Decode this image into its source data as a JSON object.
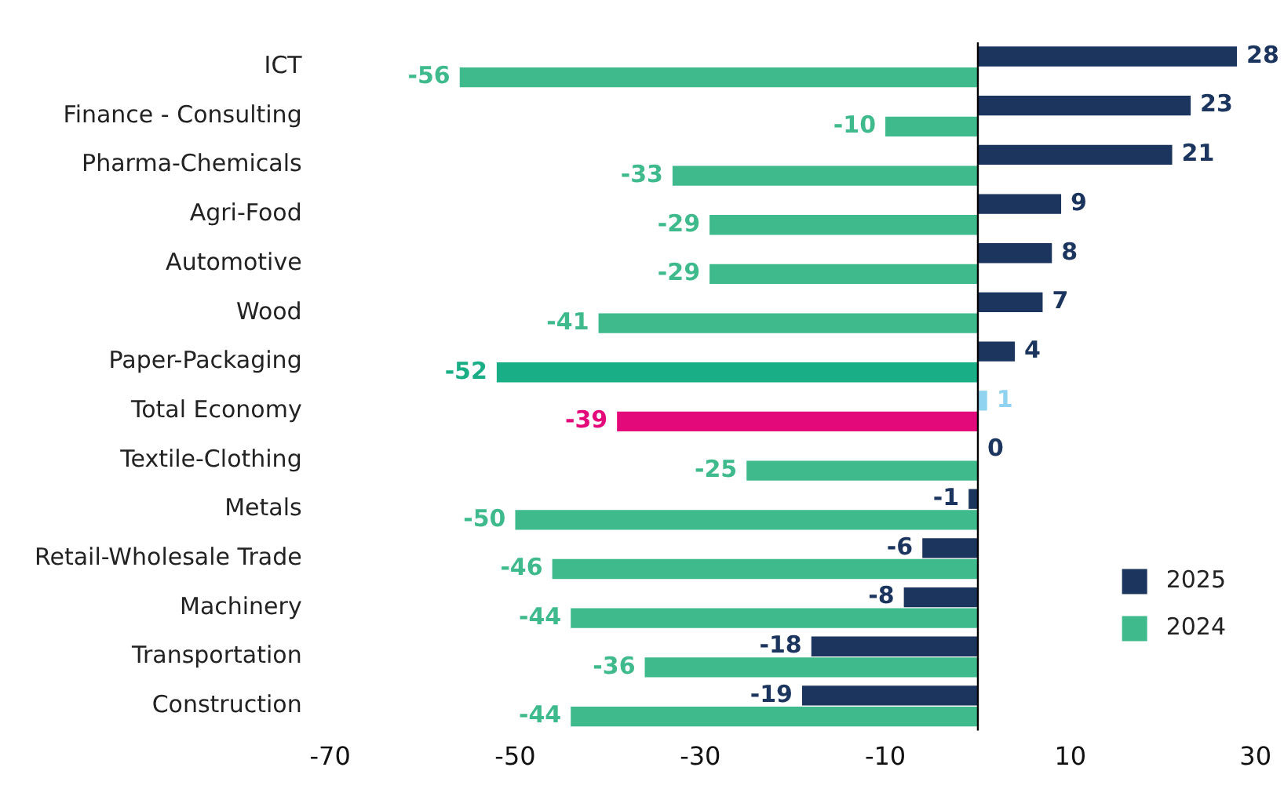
{
  "chart_data": {
    "type": "bar",
    "orientation": "horizontal",
    "categories": [
      "ICT",
      "Finance - Consulting",
      "Pharma-Chemicals",
      "Agri-Food",
      "Automotive",
      "Wood",
      "Paper-Packaging",
      "Total Economy",
      "Textile-Clothing",
      "Metals",
      "Retail-Wholesale Trade",
      "Machinery",
      "Transportation",
      "Construction"
    ],
    "series": [
      {
        "name": "2025",
        "color": "#1c355e",
        "colors": [
          "#1c355e",
          "#1c355e",
          "#1c355e",
          "#1c355e",
          "#1c355e",
          "#1c355e",
          "#1c355e",
          "#8fd3f0",
          "#1c355e",
          "#1c355e",
          "#1c355e",
          "#1c355e",
          "#1c355e",
          "#1c355e"
        ],
        "values": [
          28,
          23,
          21,
          9,
          8,
          7,
          4,
          1,
          0,
          -1,
          -6,
          -8,
          -18,
          -19
        ]
      },
      {
        "name": "2024",
        "color": "#3fba8c",
        "colors": [
          "#3fba8c",
          "#3fba8c",
          "#3fba8c",
          "#3fba8c",
          "#3fba8c",
          "#3fba8c",
          "#1aae86",
          "#e4097a",
          "#3fba8c",
          "#3fba8c",
          "#3fba8c",
          "#3fba8c",
          "#3fba8c",
          "#3fba8c"
        ],
        "values": [
          -56,
          -10,
          -33,
          -29,
          -29,
          -41,
          -52,
          -39,
          -25,
          -50,
          -46,
          -44,
          -36,
          -44
        ]
      }
    ],
    "xlim": [
      -70,
      30
    ],
    "xticks": [
      -70,
      -50,
      -30,
      -10,
      10,
      30
    ],
    "data_labels": true,
    "legend": "bottom right",
    "grid": false
  }
}
